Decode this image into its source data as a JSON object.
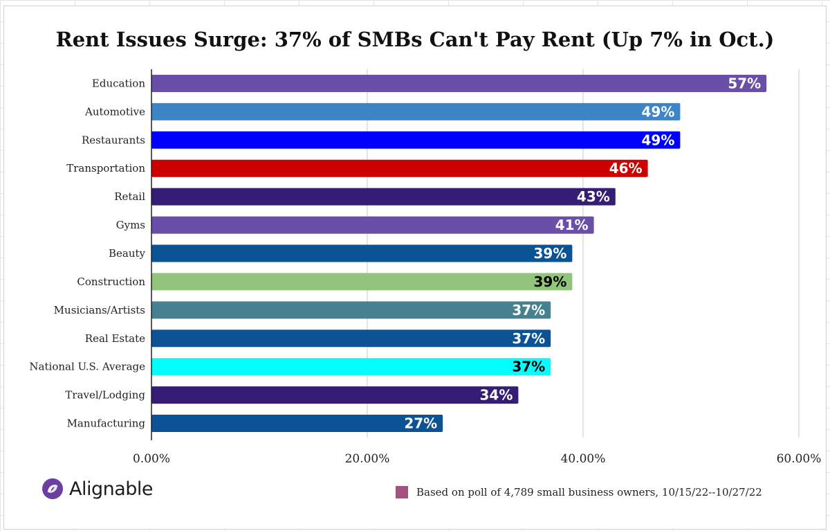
{
  "chart_data": {
    "type": "bar",
    "orientation": "horizontal",
    "title": "Rent Issues Surge: 37% of SMBs Can't Pay Rent (Up 7% in Oct.)",
    "categories": [
      "Education",
      "Automotive",
      "Restaurants",
      "Transportation",
      "Retail",
      "Gyms",
      "Beauty",
      "Construction",
      "Musicians/Artists",
      "Real Estate",
      "National U.S. Average",
      "Travel/Lodging",
      "Manufacturing"
    ],
    "values": [
      57,
      49,
      49,
      46,
      43,
      41,
      39,
      39,
      37,
      37,
      37,
      34,
      27
    ],
    "value_labels": [
      "57%",
      "49%",
      "49%",
      "46%",
      "43%",
      "41%",
      "39%",
      "39%",
      "37%",
      "37%",
      "37%",
      "34%",
      "27%"
    ],
    "bar_colors": [
      "#6a4fa8",
      "#3d85c6",
      "#0000ff",
      "#cc0000",
      "#351c75",
      "#6a4fa8",
      "#0b5394",
      "#93c47d",
      "#45818e",
      "#0b5394",
      "#00ffff",
      "#351c75",
      "#0b5394"
    ],
    "label_colors": [
      "#ffffff",
      "#ffffff",
      "#ffffff",
      "#ffffff",
      "#ffffff",
      "#ffffff",
      "#ffffff",
      "#000000",
      "#ffffff",
      "#ffffff",
      "#000000",
      "#ffffff",
      "#ffffff"
    ],
    "xlim": [
      0,
      60
    ],
    "x_ticks": [
      0,
      20,
      40,
      60
    ],
    "x_tick_labels": [
      "0.00%",
      "20.00%",
      "40.00%",
      "60.00%"
    ],
    "xlabel": "",
    "ylabel": "",
    "grid": "vertical"
  },
  "branding": {
    "logo_text": "Alignable",
    "logo_color": "#6a3fa0"
  },
  "legend": {
    "swatch_color": "#a4527e",
    "text": "Based on poll of 4,789 small business owners, 10/15/22--10/27/22"
  }
}
